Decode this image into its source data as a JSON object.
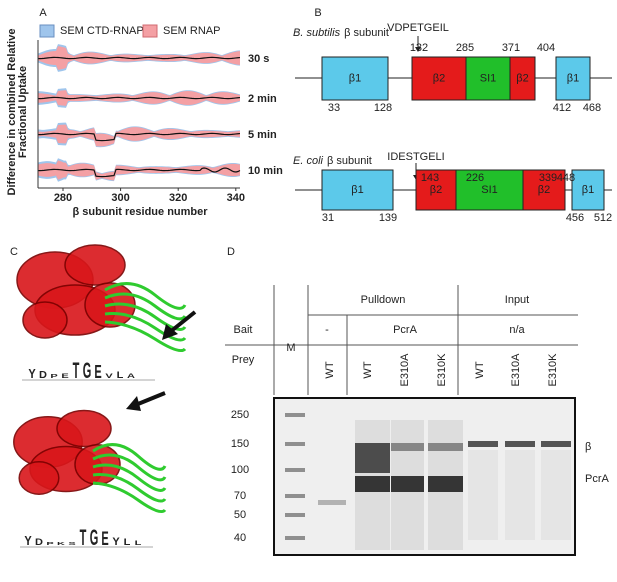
{
  "panel_a": {
    "label": "A",
    "legend": [
      "SEM CTD-RNAP",
      "SEM RNAP"
    ],
    "y_label": [
      "Difference in combined Relative",
      "Fractional Uptake"
    ],
    "x_label": "β subunit residue number",
    "x_ticks": [
      280,
      300,
      320,
      340
    ],
    "rows": [
      "30 s",
      "2 min",
      "5 min",
      "10 min"
    ]
  },
  "panel_b": {
    "label": "B",
    "constructs": [
      {
        "species": "B. subtilis",
        "suffix": "β subunit",
        "motif": "VDPETGEIL",
        "domains": [
          "β1",
          "β2",
          "SI1",
          "β2",
          "β1"
        ],
        "top_numbers": [
          132,
          285,
          371,
          404
        ],
        "bottom_numbers": [
          33,
          128,
          412,
          468
        ]
      },
      {
        "species": "E. coli",
        "suffix": "β subunit",
        "motif": "IDESTGELI",
        "domains": [
          "β1",
          "β2",
          "SI1",
          "β2",
          "β1"
        ],
        "top_numbers": [
          143,
          226,
          339,
          448
        ],
        "bottom_numbers": [
          31,
          139,
          456,
          512
        ]
      }
    ]
  },
  "panel_c": {
    "label": "C",
    "logos": [
      [
        "Y",
        "D",
        "P",
        "E",
        "T",
        "G",
        "E",
        "V",
        "L",
        "A"
      ],
      [
        "Y",
        "D",
        "P",
        "K",
        "S",
        "T",
        "G",
        "E",
        "Y",
        "L",
        "L"
      ]
    ]
  },
  "panel_d": {
    "label": "D",
    "groups": [
      "Pulldown",
      "Input"
    ],
    "row_labels": [
      "Bait",
      "Prey"
    ],
    "marker": "M",
    "bait": [
      "-",
      "PcrA",
      "n/a"
    ],
    "prey": [
      "WT",
      "WT",
      "E310A",
      "E310K",
      "WT",
      "E310A",
      "E310K"
    ],
    "mw": [
      250,
      150,
      100,
      70,
      50,
      40
    ],
    "bands": [
      "β",
      "PcrA"
    ]
  }
}
